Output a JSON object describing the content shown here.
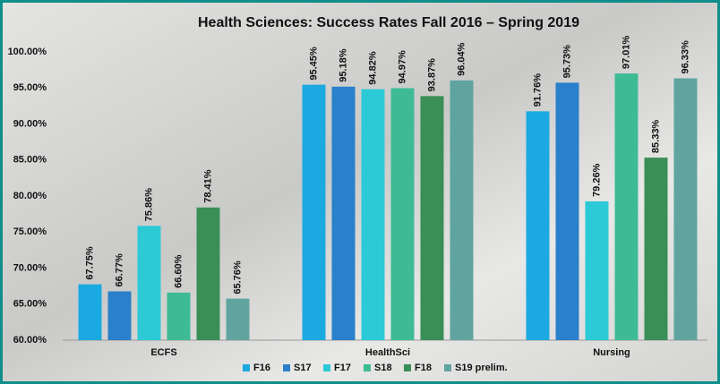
{
  "chart_data": {
    "type": "bar",
    "title": "Health Sciences: Success Rates Fall 2016 – Spring 2019",
    "categories": [
      "ECFS",
      "HealthSci",
      "Nursing"
    ],
    "series": [
      {
        "name": "F16",
        "color": "#1ba9e1",
        "values": [
          67.75,
          95.45,
          91.76
        ],
        "value_labels": [
          "67.75%",
          "95.45%",
          "91.76%"
        ]
      },
      {
        "name": "S17",
        "color": "#2a80ca",
        "values": [
          66.77,
          95.18,
          95.73
        ],
        "value_labels": [
          "66.77%",
          "95.18%",
          "95.73%"
        ]
      },
      {
        "name": "F17",
        "color": "#2bcad6",
        "values": [
          75.86,
          94.82,
          79.26
        ],
        "value_labels": [
          "75.86%",
          "94.82%",
          "79.26%"
        ]
      },
      {
        "name": "S18",
        "color": "#3ebb95",
        "values": [
          66.6,
          94.97,
          97.01
        ],
        "value_labels": [
          "66.60%",
          "94.97%",
          "97.01%"
        ]
      },
      {
        "name": "F18",
        "color": "#3a8f57",
        "values": [
          78.41,
          93.87,
          85.33
        ],
        "value_labels": [
          "78.41%",
          "93.87%",
          "85.33%"
        ]
      },
      {
        "name": "S19 prelim.",
        "color": "#60a4a0",
        "values": [
          65.76,
          96.04,
          96.33
        ],
        "value_labels": [
          "65.76%",
          "96.04%",
          "96.33%"
        ]
      }
    ],
    "ylim": [
      60,
      100
    ],
    "yticks": [
      {
        "value": 60,
        "label": "60.00%"
      },
      {
        "value": 65,
        "label": "65.00%"
      },
      {
        "value": 70,
        "label": "70.00%"
      },
      {
        "value": 75,
        "label": "75.00%"
      },
      {
        "value": 80,
        "label": "80.00%"
      },
      {
        "value": 85,
        "label": "85.00%"
      },
      {
        "value": 90,
        "label": "90.00%"
      },
      {
        "value": 95,
        "label": "95.00%"
      },
      {
        "value": 100,
        "label": "100.00%"
      }
    ],
    "grid": false,
    "legend": "bottom"
  }
}
